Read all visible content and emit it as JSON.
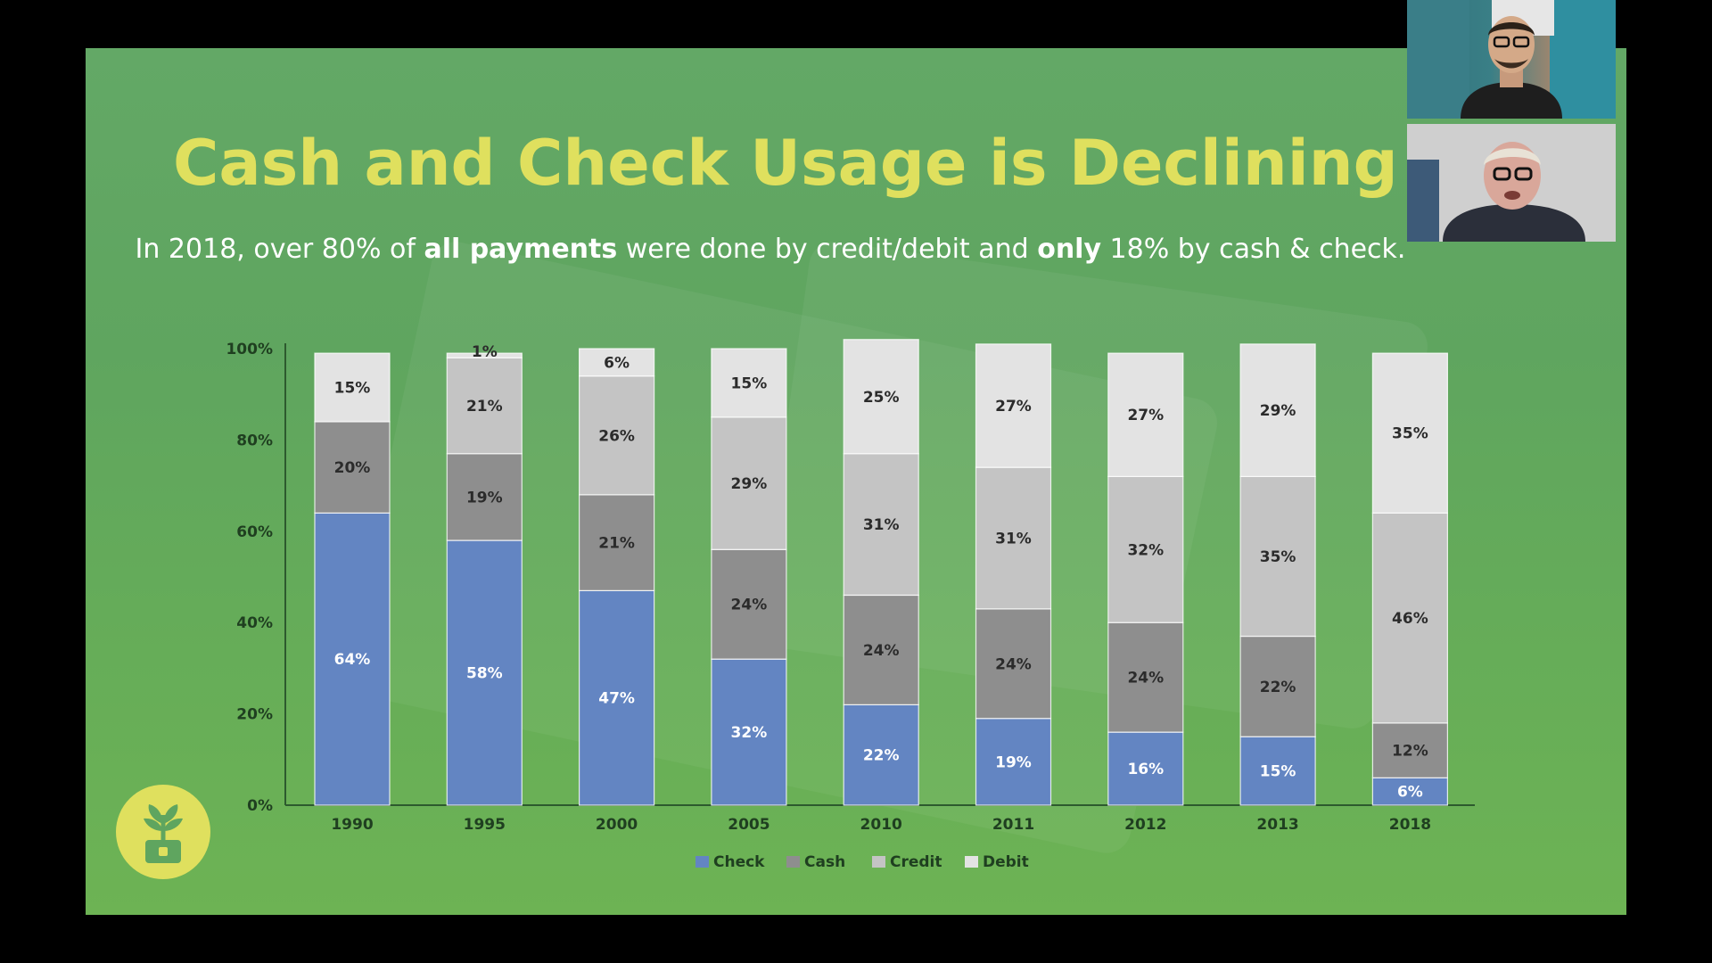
{
  "slide": {
    "title": "Cash and Check Usage is Declining Fa",
    "subtitle_parts": [
      {
        "text": "In 2018, over 80% of ",
        "bold": false
      },
      {
        "text": "all payments",
        "bold": true
      },
      {
        "text": " were done by credit/debit and ",
        "bold": false
      },
      {
        "text": "only",
        "bold": true
      },
      {
        "text": " 18% by cash & check.",
        "bold": false
      }
    ]
  },
  "chart_data": {
    "type": "bar",
    "stacked": true,
    "title": "",
    "xlabel": "",
    "ylabel": "",
    "categories": [
      "1990",
      "1995",
      "2000",
      "2005",
      "2010",
      "2011",
      "2012",
      "2013",
      "2018"
    ],
    "series": [
      {
        "name": "Check",
        "values": [
          64,
          58,
          47,
          32,
          22,
          19,
          16,
          15,
          6
        ],
        "labels": [
          "64%",
          "58%",
          "47%",
          "32%",
          "22%",
          "19%",
          "16%",
          "15%",
          "6%"
        ],
        "color": "#6385c2"
      },
      {
        "name": "Cash",
        "values": [
          20,
          19,
          21,
          24,
          24,
          24,
          24,
          22,
          12
        ],
        "labels": [
          "20%",
          "19%",
          "21%",
          "24%",
          "24%",
          "24%",
          "24%",
          "22%",
          "12%"
        ],
        "color": "#8e8e8e"
      },
      {
        "name": "Credit",
        "values": [
          0,
          21,
          26,
          29,
          31,
          31,
          32,
          35,
          46
        ],
        "labels": [
          "",
          "21%",
          "26%",
          "29%",
          "31%",
          "31%",
          "32%",
          "35%",
          "46%"
        ],
        "color": "#c4c4c4"
      },
      {
        "name": "Debit",
        "values": [
          15,
          1,
          6,
          15,
          25,
          27,
          27,
          29,
          35
        ],
        "labels": [
          "15%",
          "1%",
          "6%",
          "15%",
          "25%",
          "27%",
          "27%",
          "29%",
          "35%"
        ],
        "color": "#e3e3e3"
      }
    ],
    "y_ticks": [
      "0%",
      "20%",
      "40%",
      "60%",
      "80%",
      "100%"
    ],
    "ylim": [
      0,
      100
    ],
    "grid": false,
    "legend_position": "bottom"
  },
  "colors": {
    "title": "#dfe05e",
    "slide_background": "#63a866",
    "check": "#6385c2",
    "cash": "#8e8e8e",
    "credit": "#c4c4c4",
    "debit": "#e3e3e3"
  },
  "icons": {
    "logo": "plant-sprout-logo-icon"
  },
  "video_tiles": [
    {
      "participant": "participant-1"
    },
    {
      "participant": "participant-2"
    }
  ]
}
